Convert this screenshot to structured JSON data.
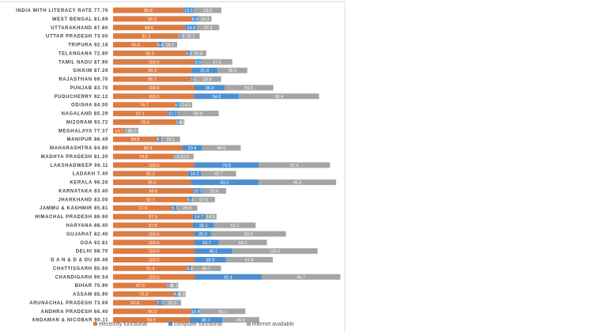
{
  "chart_data": {
    "type": "bar",
    "orientation": "horizontal",
    "stacked": true,
    "title": "",
    "xlabel": "",
    "ylabel": "",
    "grid": false,
    "legend_position": "bottom-left",
    "categories": [
      "INDIA WITH LITERACY RATE 77.70",
      "WEST BENGAL 81.69",
      "UTTARAKHAND 87.60",
      "UTTAR PRADESH 73.00",
      "TRIPURA 92.18",
      "TELANGANA 72.80",
      "TAMIL NADU 87.90",
      "SIKKIM 87.29",
      "RAJASTHAN 69.70",
      "PUNJAB 83.70",
      "PUDUCHERRY 92.12",
      "ODISHA 84.00",
      "NAGALAND 85.29",
      "MIZORAM 93.72",
      "MEGHALAYA 77.37",
      "MANIPUR 86.49",
      "MAHARASHTRA 84.80",
      "MADHYA PRADESH 81.20",
      "LAKSHADWEEP 96.11",
      "LADAKH 7.40",
      "KERALA 96.20",
      "KARNATAKA 83.40",
      "JHARKHAND 83.00",
      "JAMMU & KASHMIR 85.81",
      "HIMACHAL PRADESH 86.60",
      "HARYANA 88.40",
      "GUJARAT 82.40",
      "GOA 92.81",
      "DELHI 88.70",
      "D A N & D & DU 86.46",
      "CHATTISGARH 85.60",
      "CHANDIGARH 90.54",
      "BIHAR 70.90",
      "ASSAM 85.90",
      "ARUNACHAL PRADESH 73.69",
      "ANDHRA PRADESH 66.40",
      "ANDAMAN & NICOBAR 90.11"
    ],
    "series": [
      {
        "name": "electricity functional",
        "color": "#dc7c45",
        "values": [
          86.6,
          96.2,
          88.6,
          81.3,
          55.0,
          90.3,
          100.0,
          96.4,
          95.7,
          100.0,
          100.0,
          76.7,
          67.1,
          78.4,
          14.7,
          54.5,
          85.4,
          74.8,
          100.0,
          92.2,
          95.5,
          98.6,
          92.1,
          72.9,
          97.9,
          97.8,
          100.0,
          100.0,
          100.0,
          100.0,
          91.4,
          100.0,
          67.0,
          75.3,
          53.8,
          96.0,
          93.9
        ],
        "labels": [
          "86.6",
          "96.2",
          "88.6",
          "81.3",
          "55.0",
          "90.3",
          "100.0",
          "96.4",
          "95.7",
          "100.0",
          "100.0",
          "76.7",
          "67.1",
          "78.4",
          "14.7",
          "54.5",
          "85.4",
          "74.8",
          "100.0",
          "92.2",
          "95.5",
          "98.6",
          "92.1",
          "72.9",
          "97.9",
          "97.8",
          "100.0",
          "100.0",
          "100.0",
          "100.0",
          "91.4",
          "100.0",
          "67.0",
          "75.3",
          "53.8",
          "96.0",
          "93.9"
        ]
      },
      {
        "name": "computer functional",
        "color": "#4b8fd1",
        "values": [
          12.5,
          8.4,
          14.4,
          2.9,
          5.4,
          4.2,
          8.9,
          31.9,
          3.1,
          36.9,
          54.5,
          6.0,
          11.7,
          3.5,
          1.3,
          4.7,
          23.4,
          1.6,
          79.0,
          16.2,
          83.2,
          10.7,
          5.4,
          5.7,
          14.7,
          26.1,
          20.3,
          29.7,
          46.1,
          38.3,
          4.4,
          82.4,
          1.9,
          4.4,
          7.7,
          10.4,
          40.1
        ],
        "labels": [
          "12.5",
          "8.4",
          "14.4",
          "2.9",
          "5.4",
          "4.2",
          "8.9",
          "31.9",
          "3.1",
          "36.9",
          "54.5",
          "6.0",
          "11.7",
          "3.5",
          "1.3",
          "4.7",
          "23.4",
          "1.6",
          "79.0",
          "16.2",
          "83.2",
          "10.7",
          "5.4",
          "5.7",
          "14.7",
          "26.1",
          "20.3",
          "29.7",
          "46.1",
          "38.3",
          "4.4",
          "82.4",
          "1.9",
          "4.4",
          "7.7",
          "10.4",
          "40.1"
        ]
      },
      {
        "name": "internet available",
        "color": "#a5a5a5",
        "values": [
          33.9,
          16.3,
          27.4,
          22.1,
          18.2,
          19.9,
          37.6,
          36.5,
          33.9,
          59.9,
          98.4,
          14.5,
          50.9,
          5.9,
          15.0,
          23.1,
          48.0,
          22.5,
          87.4,
          42.7,
          95.2,
          29.6,
          27.6,
          24.9,
          14.5,
          51.2,
          92.0,
          59.2,
          105.0,
          57.8,
          36.7,
          96.7,
          11.1,
          9.3,
          22.0,
          56.1,
          45.6
        ],
        "labels": [
          "33.9",
          "16.3",
          "27.4",
          "22.1",
          "18.2",
          "19.9",
          "37.6",
          "36.5",
          "33.9",
          "59.9",
          "98.4",
          "14.5",
          "50.9",
          "5.9",
          "15.0",
          "23.1",
          "48.0",
          "22.5",
          "87.4",
          "42.7",
          "95.2",
          "29.6",
          "27.6",
          "24.9",
          "14.5",
          "51.2",
          "92.0",
          "59.2",
          "105.0",
          "57.8",
          "36.7",
          "96.7",
          "11.1",
          "9.3",
          "22.0",
          "56.1",
          "45.6"
        ]
      }
    ],
    "xlim": [
      0,
      285
    ]
  }
}
